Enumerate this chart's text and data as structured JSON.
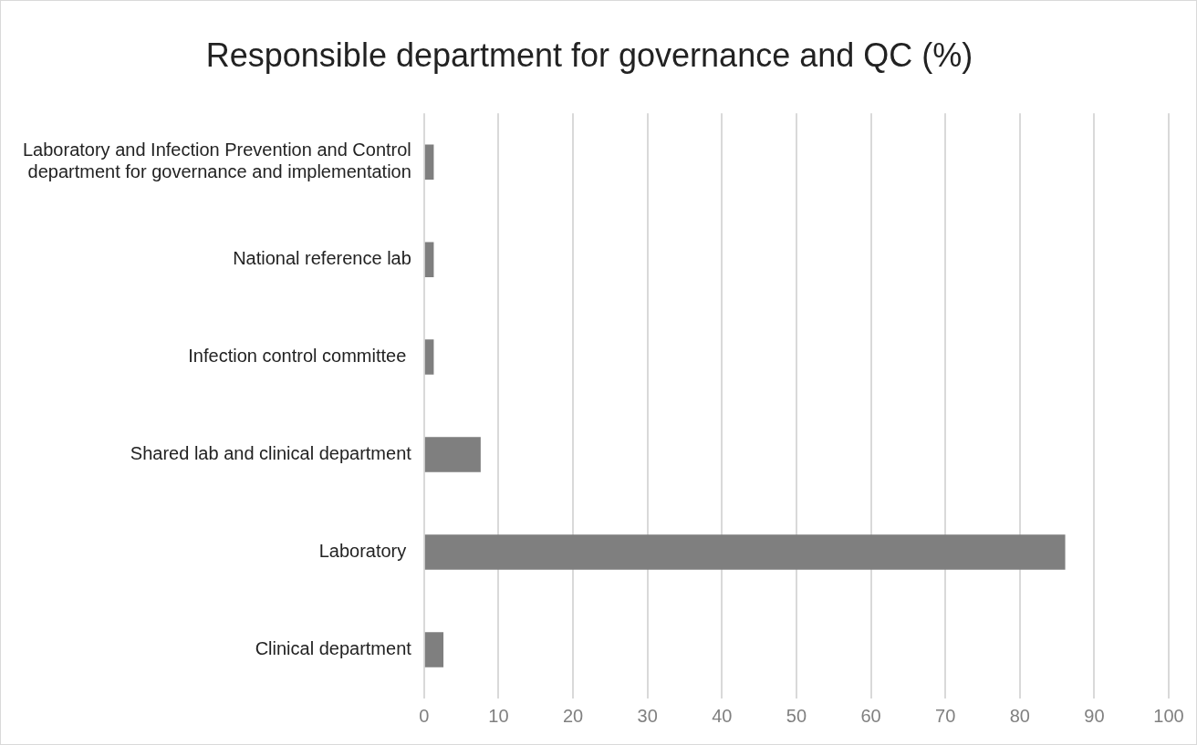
{
  "chart_data": {
    "type": "bar",
    "orientation": "horizontal",
    "title": "Responsible department for governance and QC (%)",
    "categories": [
      "Laboratory and Infection Prevention and Control\ndepartment for governance and implementation",
      "National reference lab",
      "Infection control committee ",
      "Shared lab and clinical department",
      "Laboratory ",
      "Clinical department"
    ],
    "values": [
      1.3,
      1.3,
      1.3,
      7.6,
      86.1,
      2.6
    ],
    "color": "#7f7f7f",
    "xlim": [
      0,
      100
    ],
    "xticks": [
      0,
      10,
      20,
      30,
      40,
      50,
      60,
      70,
      80,
      90,
      100
    ],
    "grid": "x",
    "legend": false
  }
}
